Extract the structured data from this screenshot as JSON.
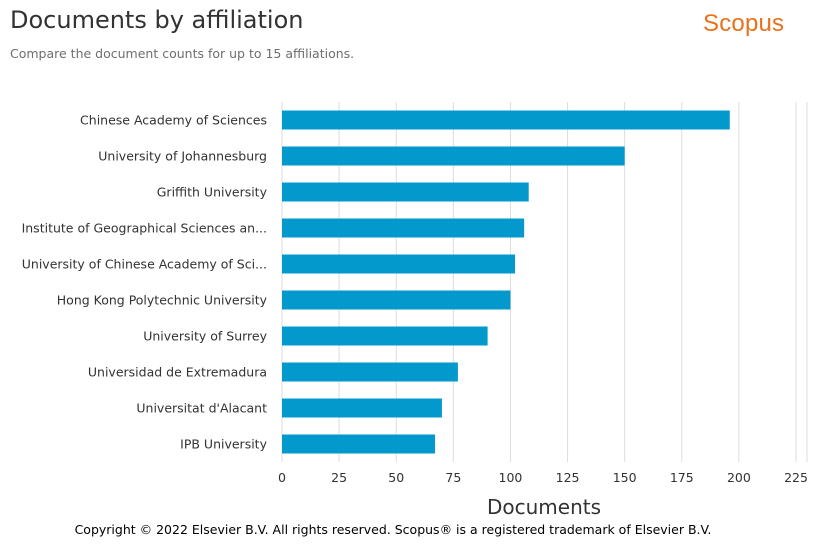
{
  "header": {
    "title": "Documents by affiliation",
    "subtitle": "Compare the document counts for up to 15 affiliations.",
    "logo": "Scopus"
  },
  "footer": {
    "copyright": "Copyright © 2022 Elsevier B.V. All rights reserved. Scopus® is a registered trademark of Elsevier B.V."
  },
  "colors": {
    "bar": "#0399cc",
    "logo": "#e9711c",
    "grid": "#dcdcdc"
  },
  "chart_data": {
    "type": "bar",
    "orientation": "horizontal",
    "categories": [
      "Chinese Academy of Sciences",
      "University of Johannesburg",
      "Griffith University",
      "Institute of Geographical Sciences an...",
      "University of Chinese Academy of Sci...",
      "Hong Kong Polytechnic University",
      "University of Surrey",
      "Universidad de Extremadura",
      "Universitat d'Alacant",
      "IPB University"
    ],
    "values": [
      196,
      150,
      108,
      106,
      102,
      100,
      90,
      77,
      70,
      67
    ],
    "xlabel": "Documents",
    "ylabel": "",
    "xlim": [
      0,
      225
    ],
    "xticks": [
      "0",
      "25",
      "50",
      "75",
      "100",
      "125",
      "150",
      "175",
      "200",
      "225"
    ],
    "grid": "vertical"
  }
}
